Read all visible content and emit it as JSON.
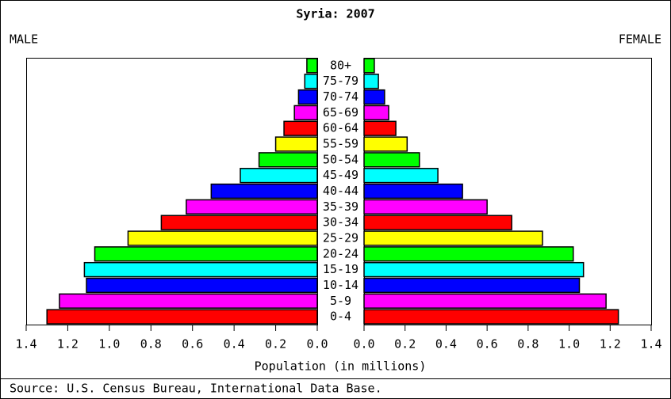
{
  "chart_data": {
    "type": "bar",
    "title": "Syria: 2007",
    "categories": [
      "0-4",
      "5-9",
      "10-14",
      "15-19",
      "20-24",
      "25-29",
      "30-34",
      "35-39",
      "40-44",
      "45-49",
      "50-54",
      "55-59",
      "60-64",
      "65-69",
      "70-74",
      "75-79",
      "80+"
    ],
    "colors": [
      "#ff0000",
      "#ff00ff",
      "#0000ff",
      "#00ffff",
      "#00ff00",
      "#ffff00",
      "#ff0000",
      "#ff00ff",
      "#0000ff",
      "#00ffff",
      "#00ff00",
      "#ffff00",
      "#ff0000",
      "#ff00ff",
      "#0000ff",
      "#00ffff",
      "#00ff00"
    ],
    "series": [
      {
        "name": "MALE",
        "values": [
          1.3,
          1.24,
          1.11,
          1.12,
          1.07,
          0.91,
          0.75,
          0.63,
          0.51,
          0.37,
          0.28,
          0.2,
          0.16,
          0.11,
          0.09,
          0.06,
          0.05
        ]
      },
      {
        "name": "FEMALE",
        "values": [
          1.24,
          1.18,
          1.05,
          1.07,
          1.02,
          0.87,
          0.72,
          0.6,
          0.48,
          0.36,
          0.27,
          0.21,
          0.155,
          0.12,
          0.1,
          0.07,
          0.05
        ]
      }
    ],
    "xlim": [
      0,
      1.4
    ],
    "xticks": [
      {
        "value": 0,
        "label": "0.0"
      },
      {
        "value": 0.2,
        "label": "0.2"
      },
      {
        "value": 0.4,
        "label": "0.4"
      },
      {
        "value": 0.6,
        "label": "0.6"
      },
      {
        "value": 0.8,
        "label": "0.8"
      },
      {
        "value": 1,
        "label": "1.0"
      },
      {
        "value": 1.2,
        "label": "1.2"
      },
      {
        "value": 1.4,
        "label": "1.4"
      }
    ],
    "xlabel": "Population (in millions)",
    "source": "Source: U.S. Census Bureau, International Data Base."
  }
}
